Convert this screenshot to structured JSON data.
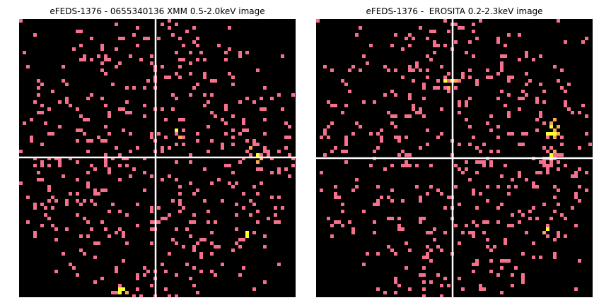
{
  "panels": [
    {
      "title": "eFEDS-1376 - 0655340136 XMM 0.5-2.0keV image"
    },
    {
      "title": "eFEDS-1376 -  EROSITA 0.2-2.3keV image"
    }
  ]
}
